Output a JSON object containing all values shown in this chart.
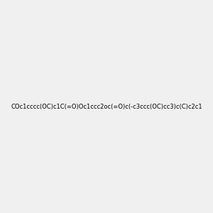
{
  "smiles": "COc1cccc(OC)c1C(=O)Oc1ccc2oc(=O)c(-c3ccc(OC)cc3)c(C)c2c1",
  "image_size": 300,
  "background_color": "#f0f0f0"
}
